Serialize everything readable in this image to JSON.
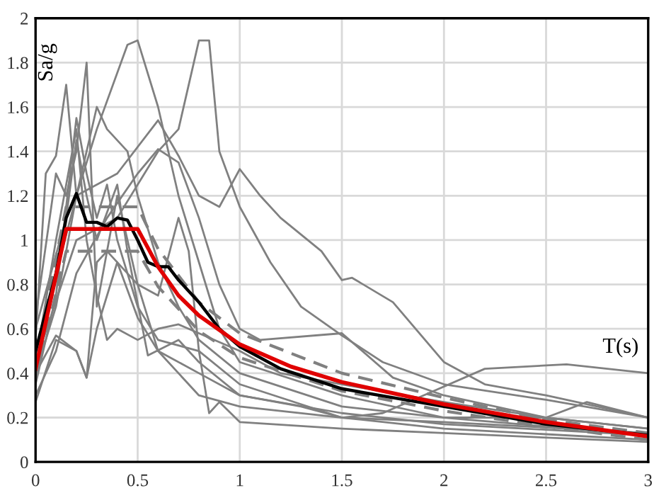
{
  "chart_data": {
    "type": "line",
    "xlabel": "T(s)",
    "ylabel": "Sa/g",
    "xlim": [
      0,
      3
    ],
    "ylim": [
      0,
      2
    ],
    "xticks": [
      0,
      0.5,
      1,
      1.5,
      2,
      2.5,
      3
    ],
    "yticks": [
      0,
      0.2,
      0.4,
      0.6,
      0.8,
      1,
      1.2,
      1.4,
      1.6,
      1.8,
      2
    ],
    "grid": true,
    "marker": "none",
    "series": [
      {
        "color": "#808080",
        "x": [
          0,
          0.1,
          0.2,
          0.3,
          0.45,
          0.5,
          0.6,
          0.7,
          0.8,
          0.9,
          1.0,
          1.5,
          2,
          3
        ],
        "values": [
          0.4,
          0.7,
          1.2,
          1.5,
          1.88,
          1.9,
          1.6,
          1.2,
          0.9,
          0.6,
          0.45,
          0.3,
          0.2,
          0.12
        ]
      },
      {
        "color": "#808080",
        "x": [
          0,
          0.2,
          0.4,
          0.6,
          0.7,
          0.8,
          0.85,
          0.9,
          1.0,
          1.15,
          1.3,
          1.5,
          1.7,
          2,
          2.5,
          3
        ],
        "values": [
          0.45,
          1.0,
          1.1,
          1.4,
          1.5,
          1.9,
          1.9,
          1.4,
          1.15,
          0.9,
          0.7,
          0.57,
          0.45,
          0.35,
          0.28,
          0.2
        ]
      },
      {
        "color": "#808080",
        "x": [
          0,
          0.2,
          0.4,
          0.6,
          0.7,
          0.8,
          0.9,
          1.0,
          1.1,
          1.2,
          1.4,
          1.5,
          1.55,
          1.75,
          2.0,
          2.2,
          2.5,
          3
        ],
        "values": [
          0.5,
          1.2,
          1.3,
          1.54,
          1.38,
          1.2,
          1.15,
          1.32,
          1.2,
          1.1,
          0.95,
          0.82,
          0.83,
          0.72,
          0.45,
          0.35,
          0.3,
          0.2
        ]
      },
      {
        "color": "#808080",
        "x": [
          0,
          0.1,
          0.2,
          0.35,
          0.5,
          0.6,
          0.7,
          0.8,
          0.9,
          1.0,
          1.1,
          1.5,
          1.75,
          2.0,
          2.5,
          3
        ],
        "values": [
          0.3,
          0.5,
          0.85,
          1.1,
          1.3,
          1.41,
          1.35,
          1.1,
          0.8,
          0.6,
          0.55,
          0.58,
          0.38,
          0.3,
          0.2,
          0.15
        ]
      },
      {
        "color": "#808080",
        "x": [
          0,
          0.1,
          0.2,
          0.25,
          0.3,
          0.4,
          0.5,
          0.6,
          0.8,
          1.0,
          1.5,
          1.7,
          1.9,
          2.2,
          2.6,
          3
        ],
        "values": [
          0.27,
          0.55,
          0.5,
          0.38,
          0.6,
          0.9,
          0.65,
          0.5,
          0.3,
          0.25,
          0.2,
          0.22,
          0.3,
          0.42,
          0.44,
          0.4
        ]
      },
      {
        "color": "#808080",
        "x": [
          0,
          0.1,
          0.15,
          0.2,
          0.25,
          0.3,
          0.4,
          0.5,
          0.6,
          0.8,
          1.0,
          1.5,
          2,
          3
        ],
        "values": [
          0.65,
          1.3,
          1.2,
          1.4,
          1.8,
          0.7,
          1.2,
          0.8,
          0.5,
          0.4,
          0.3,
          0.22,
          0.17,
          0.12
        ]
      },
      {
        "color": "#808080",
        "x": [
          0,
          0.05,
          0.1,
          0.15,
          0.2,
          0.3,
          0.35,
          0.45,
          0.5,
          0.6,
          0.7,
          0.8,
          1.0,
          1.5,
          2,
          2.5,
          2.7,
          3
        ],
        "values": [
          0.55,
          1.3,
          1.38,
          1.7,
          1.2,
          1.6,
          1.5,
          1.4,
          1.2,
          0.9,
          0.7,
          0.55,
          0.4,
          0.25,
          0.2,
          0.2,
          0.27,
          0.2
        ]
      },
      {
        "color": "#808080",
        "x": [
          0,
          0.1,
          0.2,
          0.25,
          0.3,
          0.35,
          0.5,
          0.6,
          0.7,
          0.75,
          0.8,
          0.85,
          0.9,
          1.0,
          1.5,
          2,
          3
        ],
        "values": [
          0.4,
          0.57,
          0.5,
          0.38,
          0.9,
          0.95,
          0.8,
          0.75,
          1.1,
          0.95,
          0.5,
          0.22,
          0.27,
          0.18,
          0.15,
          0.13,
          0.09
        ]
      },
      {
        "color": "#808080",
        "x": [
          0,
          0.1,
          0.2,
          0.25,
          0.3,
          0.35,
          0.4,
          0.5,
          0.6,
          0.8,
          1.0,
          1.5,
          2,
          3
        ],
        "values": [
          0.35,
          0.75,
          1.55,
          1.3,
          1.1,
          1.25,
          1.0,
          0.7,
          0.55,
          0.5,
          0.35,
          0.2,
          0.15,
          0.1
        ]
      },
      {
        "color": "#808080",
        "x": [
          0,
          0.1,
          0.2,
          0.25,
          0.3,
          0.35,
          0.4,
          0.5,
          0.6,
          0.7,
          0.8,
          1.0,
          1.2,
          1.5,
          2,
          2.5,
          3
        ],
        "values": [
          0.45,
          1.0,
          1.5,
          1.0,
          0.75,
          0.55,
          0.6,
          0.55,
          0.6,
          0.62,
          0.58,
          0.5,
          0.4,
          0.35,
          0.27,
          0.2,
          0.15
        ]
      },
      {
        "color": "#808080",
        "x": [
          0,
          0.15,
          0.2,
          0.25,
          0.3,
          0.4,
          0.45,
          0.55,
          0.7,
          0.8,
          1.0,
          1.3,
          1.5,
          2,
          3
        ],
        "values": [
          0.6,
          1.1,
          1.45,
          1.2,
          1.0,
          1.25,
          0.95,
          0.48,
          0.55,
          0.45,
          0.3,
          0.25,
          0.2,
          0.18,
          0.13
        ]
      },
      {
        "color": "#808080",
        "line_style": "dashed",
        "x": [
          0,
          0.15,
          0.5,
          0.6,
          0.8,
          1.0,
          1.5,
          2,
          2.5,
          3
        ],
        "values": [
          0.46,
          1.15,
          1.15,
          0.96,
          0.72,
          0.58,
          0.4,
          0.29,
          0.19,
          0.13
        ]
      },
      {
        "color": "#808080",
        "line_style": "dashed",
        "x": [
          0,
          0.15,
          0.5,
          0.6,
          0.8,
          1.0,
          1.5,
          2,
          2.5,
          3
        ],
        "values": [
          0.38,
          0.95,
          0.95,
          0.79,
          0.59,
          0.47,
          0.32,
          0.23,
          0.16,
          0.1
        ]
      },
      {
        "color": "#000000",
        "x": [
          0,
          0.1,
          0.15,
          0.2,
          0.25,
          0.3,
          0.35,
          0.4,
          0.45,
          0.5,
          0.55,
          0.6,
          0.65,
          0.7,
          0.8,
          0.9,
          1.0,
          1.2,
          1.5,
          2,
          2.5,
          3
        ],
        "values": [
          0.5,
          0.85,
          1.1,
          1.21,
          1.08,
          1.08,
          1.06,
          1.1,
          1.09,
          1.0,
          0.9,
          0.88,
          0.88,
          0.82,
          0.72,
          0.6,
          0.52,
          0.42,
          0.33,
          0.25,
          0.17,
          0.12
        ]
      },
      {
        "color": "#e00000",
        "x": [
          0,
          0.15,
          0.5,
          0.6,
          0.7,
          0.8,
          1.0,
          1.25,
          1.5,
          2,
          2.5,
          3
        ],
        "values": [
          0.42,
          1.05,
          1.05,
          0.88,
          0.75,
          0.66,
          0.53,
          0.43,
          0.36,
          0.26,
          0.18,
          0.115
        ]
      }
    ]
  }
}
